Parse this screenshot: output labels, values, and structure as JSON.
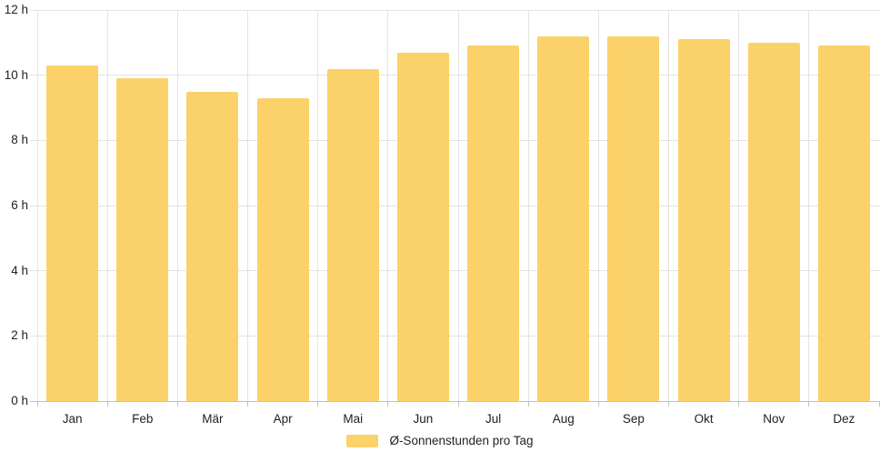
{
  "chart_data": {
    "type": "bar",
    "title": "",
    "xlabel": "",
    "ylabel": "",
    "categories": [
      "Jan",
      "Feb",
      "Mär",
      "Apr",
      "Mai",
      "Jun",
      "Jul",
      "Aug",
      "Sep",
      "Okt",
      "Nov",
      "Dez"
    ],
    "series": [
      {
        "name": "Ø-Sonnenstunden pro Tag",
        "values": [
          10.3,
          9.9,
          9.5,
          9.3,
          10.2,
          10.7,
          10.9,
          11.2,
          11.2,
          11.1,
          11.0,
          10.9
        ]
      }
    ],
    "ylim": [
      0,
      12
    ],
    "ytick_step": 2,
    "ytick_labels": [
      "0 h",
      "2 h",
      "4 h",
      "6 h",
      "8 h",
      "10 h",
      "12 h"
    ],
    "grid": "on",
    "legend": {
      "position": "bottom-center",
      "items": [
        {
          "label": "Ø-Sonnenstunden pro Tag",
          "color": "#FBD26A"
        }
      ]
    }
  },
  "colors": {
    "bar": "#FBD26A",
    "grid": "#E3E3E3",
    "axis": "#C2C2C2",
    "text": "#222222",
    "background": "#FFFFFF"
  }
}
